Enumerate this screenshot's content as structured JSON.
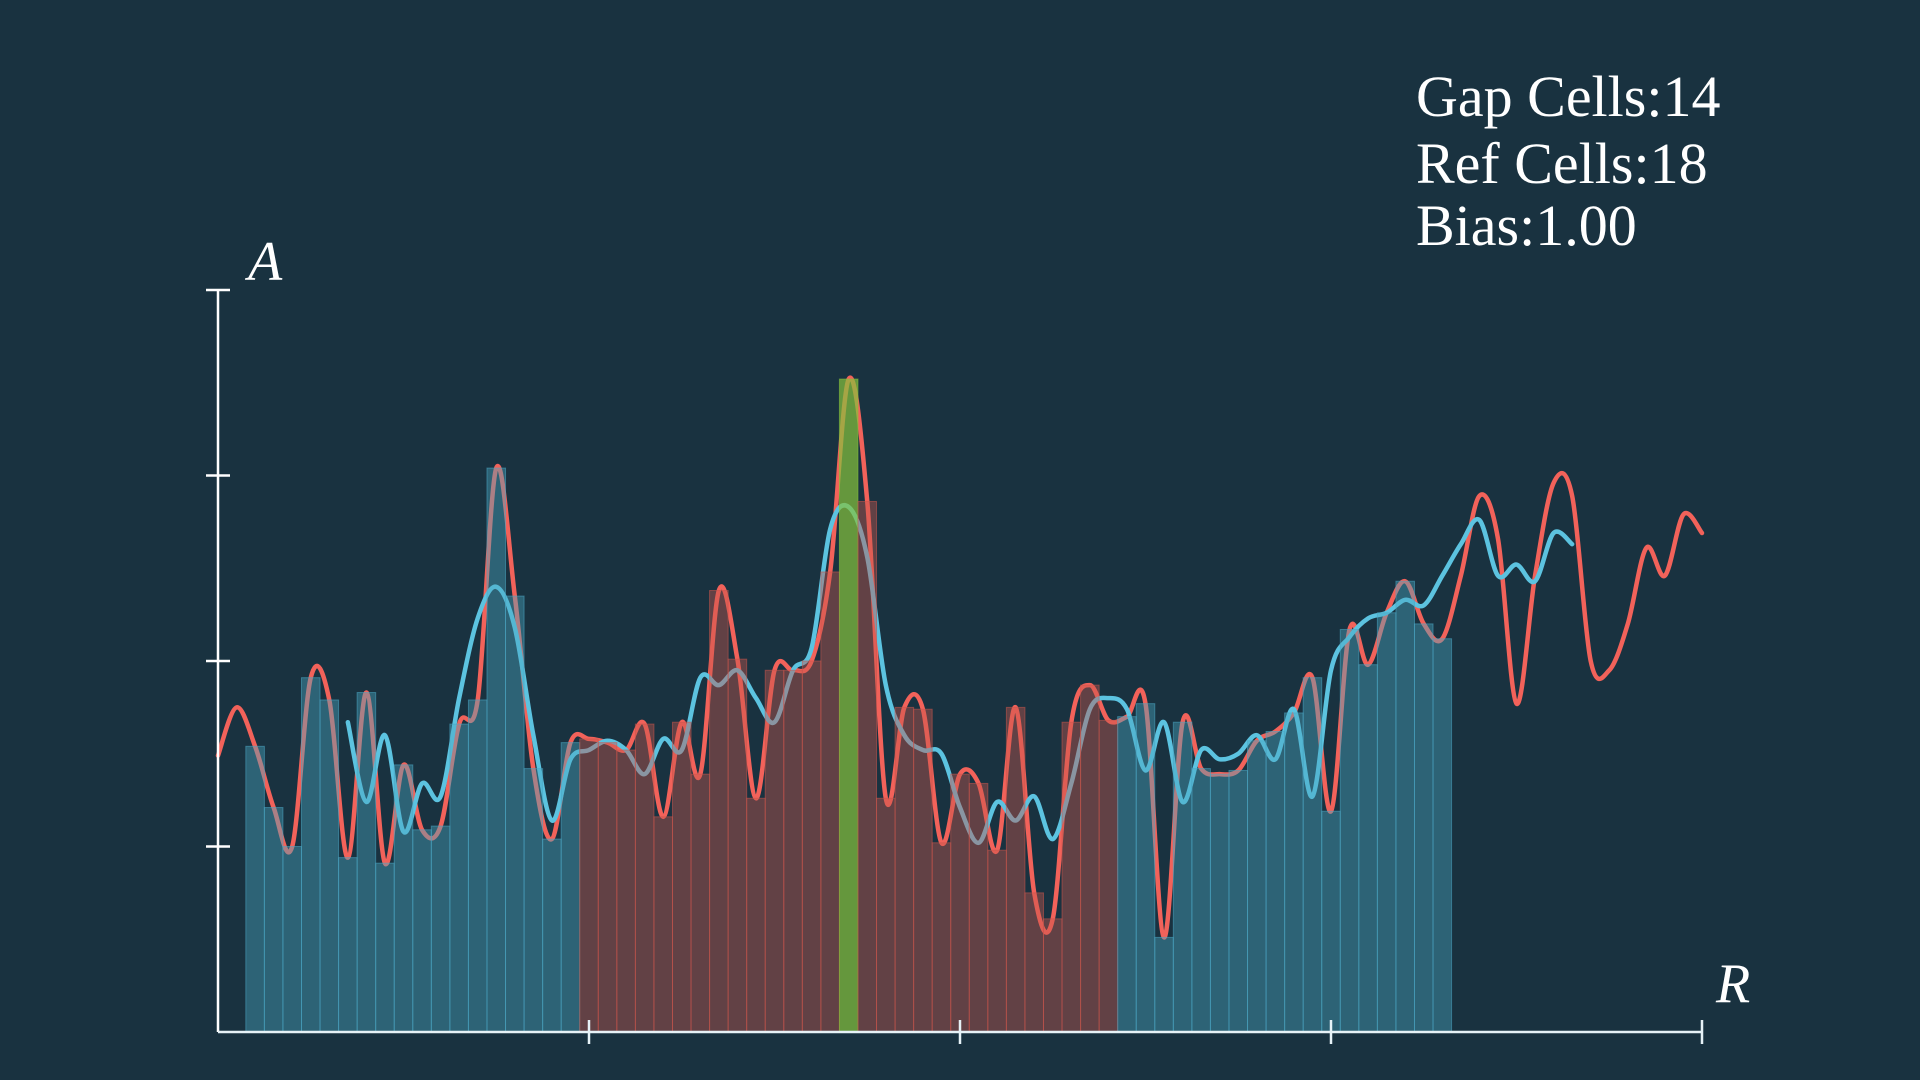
{
  "chart_data": {
    "type": "cfar",
    "axis_labels": {
      "x": "R",
      "y": "A"
    },
    "xlim": [
      0,
      4
    ],
    "ylim": [
      0,
      4
    ],
    "xticks": [
      1,
      2,
      3,
      4
    ],
    "yticks": [
      1,
      2,
      3,
      4
    ],
    "info": [
      {
        "label": "Gap Cells:",
        "value": 14
      },
      {
        "label": "Ref Cells:",
        "value": 18
      },
      {
        "label": "Bias:",
        "value": 1,
        "value_label": "1.00"
      }
    ],
    "cells": {
      "bins": [
        0.075,
        0.125,
        0.175,
        0.225,
        0.275,
        0.325,
        0.375,
        0.425,
        0.475,
        0.525,
        0.575,
        0.625,
        0.675,
        0.725,
        0.775,
        0.825,
        0.875,
        0.925,
        0.975,
        1.025,
        1.075,
        1.125,
        1.175,
        1.225,
        1.275,
        1.325,
        1.375,
        1.425,
        1.475,
        1.525,
        1.575,
        1.625,
        1.675,
        1.725,
        1.775,
        1.825,
        1.875,
        1.925,
        1.975,
        2.025,
        2.075,
        2.125,
        2.175,
        2.225,
        2.275,
        2.325,
        2.375,
        2.425,
        2.475,
        2.525,
        2.575,
        2.625,
        2.675,
        2.725,
        2.775,
        2.825,
        2.875,
        2.925,
        2.975,
        3.025,
        3.075,
        3.125,
        3.175,
        3.225,
        3.275,
        3.325
      ],
      "values": [
        1.54,
        1.21,
        1.0,
        1.91,
        1.79,
        0.94,
        1.83,
        0.91,
        1.44,
        1.09,
        1.11,
        1.66,
        1.79,
        3.04,
        2.35,
        1.42,
        1.04,
        1.56,
        1.58,
        1.56,
        1.52,
        1.66,
        1.16,
        1.67,
        1.39,
        2.38,
        2.01,
        1.26,
        1.95,
        1.95,
        2.0,
        2.48,
        3.52,
        2.86,
        1.26,
        1.75,
        1.74,
        1.02,
        1.39,
        1.34,
        0.98,
        1.75,
        0.75,
        0.61,
        1.67,
        1.87,
        1.68,
        1.7,
        1.77,
        0.51,
        1.67,
        1.42,
        1.39,
        1.41,
        1.57,
        1.62,
        1.72,
        1.91,
        1.19,
        2.17,
        1.98,
        2.26,
        2.43,
        2.2,
        2.12
      ],
      "ref_color": "#4aa6c2",
      "gap_color": "#c9564d",
      "cut_color": "#86c23c"
    },
    "series": [
      {
        "color": "#f2625a",
        "x": [
          0,
          0.05,
          0.1,
          0.15,
          0.2,
          0.25,
          0.3,
          0.35,
          0.4,
          0.45,
          0.5,
          0.55,
          0.6,
          0.65,
          0.7,
          0.75,
          0.8,
          0.85,
          0.9,
          0.95,
          1.0,
          1.05,
          1.1,
          1.15,
          1.2,
          1.25,
          1.3,
          1.35,
          1.4,
          1.45,
          1.5,
          1.55,
          1.6,
          1.65,
          1.7,
          1.75,
          1.8,
          1.85,
          1.9,
          1.95,
          2.0,
          2.05,
          2.1,
          2.15,
          2.2,
          2.25,
          2.3,
          2.35,
          2.4,
          2.45,
          2.5,
          2.55,
          2.6,
          2.65,
          2.7,
          2.75,
          2.8,
          2.85,
          2.9,
          2.95,
          3.0,
          3.05,
          3.1,
          3.15,
          3.2,
          3.25,
          3.3,
          3.35,
          3.4,
          3.45,
          3.5,
          3.55,
          3.6,
          3.65,
          3.7,
          3.75,
          3.8,
          3.85,
          3.9,
          3.95,
          4.0
        ],
        "values": [
          1.49,
          1.75,
          1.54,
          1.21,
          1.0,
          1.91,
          1.79,
          0.94,
          1.83,
          0.91,
          1.44,
          1.09,
          1.11,
          1.66,
          1.79,
          3.04,
          2.35,
          1.42,
          1.04,
          1.56,
          1.58,
          1.56,
          1.52,
          1.66,
          1.16,
          1.67,
          1.39,
          2.38,
          2.01,
          1.26,
          1.95,
          1.95,
          2.0,
          2.48,
          3.52,
          2.86,
          1.26,
          1.75,
          1.74,
          1.02,
          1.39,
          1.34,
          0.98,
          1.75,
          0.75,
          0.61,
          1.67,
          1.87,
          1.68,
          1.7,
          1.77,
          0.51,
          1.67,
          1.42,
          1.39,
          1.41,
          1.57,
          1.62,
          1.72,
          1.91,
          1.19,
          2.17,
          1.98,
          2.26,
          2.43,
          2.2,
          2.12,
          2.46,
          2.89,
          2.66,
          1.77,
          2.46,
          2.96,
          2.89,
          2.0,
          1.95,
          2.2,
          2.61,
          2.46,
          2.79,
          2.69
        ]
      },
      {
        "color": "#5cc3e0",
        "x": [
          0.35,
          0.4,
          0.45,
          0.5,
          0.55,
          0.6,
          0.65,
          0.7,
          0.75,
          0.8,
          0.85,
          0.9,
          0.95,
          1.0,
          1.05,
          1.1,
          1.15,
          1.2,
          1.25,
          1.3,
          1.35,
          1.4,
          1.45,
          1.5,
          1.55,
          1.6,
          1.65,
          1.7,
          1.75,
          1.8,
          1.85,
          1.9,
          1.95,
          2.0,
          2.05,
          2.1,
          2.15,
          2.2,
          2.25,
          2.3,
          2.35,
          2.4,
          2.45,
          2.5,
          2.55,
          2.6,
          2.65,
          2.7,
          2.75,
          2.8,
          2.85,
          2.9,
          2.95,
          3.0,
          3.05,
          3.1,
          3.15,
          3.2,
          3.25,
          3.3,
          3.35,
          3.4,
          3.45,
          3.5,
          3.55,
          3.6,
          3.65
        ],
        "values": [
          1.67,
          1.24,
          1.6,
          1.08,
          1.34,
          1.27,
          1.8,
          2.23,
          2.4,
          2.18,
          1.6,
          1.14,
          1.47,
          1.52,
          1.57,
          1.52,
          1.39,
          1.58,
          1.52,
          1.91,
          1.87,
          1.95,
          1.8,
          1.67,
          1.95,
          2.07,
          2.71,
          2.83,
          2.56,
          1.87,
          1.6,
          1.52,
          1.5,
          1.21,
          1.02,
          1.24,
          1.14,
          1.27,
          1.04,
          1.34,
          1.74,
          1.8,
          1.74,
          1.41,
          1.67,
          1.24,
          1.52,
          1.47,
          1.5,
          1.6,
          1.47,
          1.74,
          1.27,
          1.95,
          2.13,
          2.23,
          2.26,
          2.33,
          2.3,
          2.46,
          2.63,
          2.76,
          2.46,
          2.52,
          2.43,
          2.69,
          2.63
        ]
      }
    ]
  }
}
